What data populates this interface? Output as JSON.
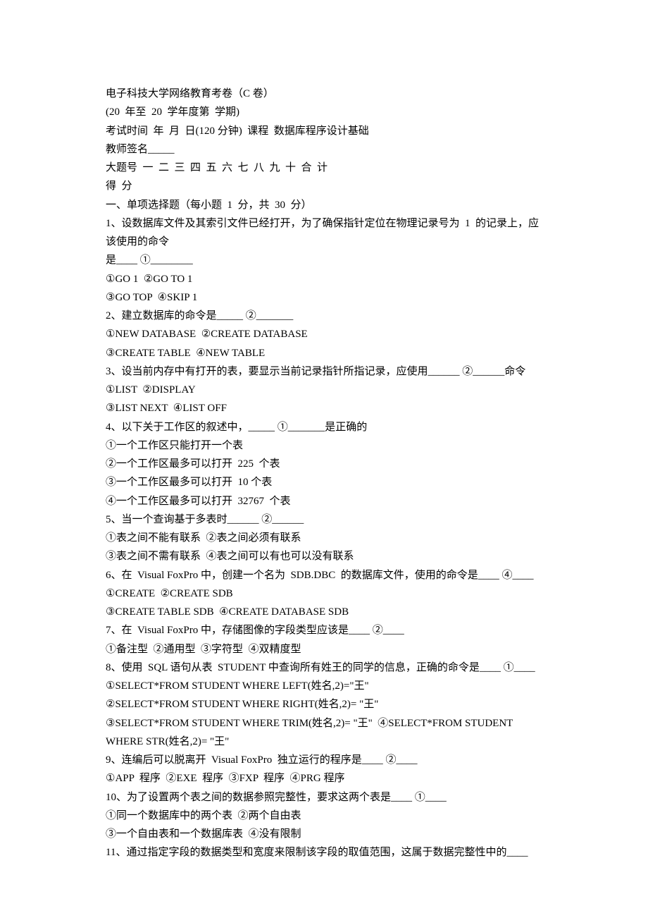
{
  "header": {
    "title": "电子科技大学网络教育考卷（C 卷）",
    "period": "(20  年至  20  学年度第  学期)",
    "examTime": "考试时间  年  月  日(120 分钟)  课程  数据库程序设计基础",
    "teacherSign": "教师签名_____",
    "columns": "大题号  一  二  三  四  五  六  七  八  九  十  合  计",
    "score": "得  分"
  },
  "section1": {
    "title": "一、单项选择题（每小题  1  分，共  30  分）",
    "q1": {
      "stem1": "1、设数据库文件及其索引文件已经打开，为了确保指针定位在物理记录号为  1  的记录上，应该使用的命令",
      "stem2": "是____ ①________",
      "opt1": "①GO 1  ②GO TO 1",
      "opt2": "③GO TOP  ④SKIP 1"
    },
    "q2": {
      "stem": "2、建立数据库的命令是_____ ②_______",
      "opt1": "①NEW DATABASE  ②CREATE DATABASE",
      "opt2": "③CREATE TABLE  ④NEW TABLE"
    },
    "q3": {
      "stem": "3、设当前内存中有打开的表，要显示当前记录指针所指记录，应使用______ ②______命令",
      "opt1": "①LIST  ②DISPLAY",
      "opt2": "③LIST NEXT  ④LIST OFF"
    },
    "q4": {
      "stem": "4、以下关于工作区的叙述中，_____ ①_______是正确的",
      "opt1": "①一个工作区只能打开一个表",
      "opt2": "②一个工作区最多可以打开  225  个表",
      "opt3": "③一个工作区最多可以打开  10 个表",
      "opt4": "④一个工作区最多可以打开  32767  个表"
    },
    "q5": {
      "stem": "5、当一个查询基于多表时______ ②______",
      "opt1": "①表之间不能有联系  ②表之间必须有联系",
      "opt2": "③表之间不需有联系  ④表之间可以有也可以没有联系"
    },
    "q6": {
      "stem": "6、在  Visual FoxPro 中，创建一个名为  SDB.DBC  的数据库文件，使用的命令是____ ④____",
      "opt1": "①CREATE  ②CREATE SDB",
      "opt2": "③CREATE TABLE SDB  ④CREATE DATABASE SDB"
    },
    "q7": {
      "stem": "7、在  Visual FoxPro 中，存储图像的字段类型应该是____ ②____",
      "opt1": "①备注型  ②通用型  ③字符型  ④双精度型"
    },
    "q8": {
      "stem": "8、使用  SQL 语句从表  STUDENT 中查询所有姓王的同学的信息，正确的命令是____ ①____",
      "opt1": "①SELECT*FROM STUDENT WHERE LEFT(姓名,2)=\"王\"",
      "opt2": "②SELECT*FROM STUDENT WHERE RIGHT(姓名,2)= \"王\"",
      "opt3": "③SELECT*FROM STUDENT WHERE TRIM(姓名,2)= \"王\"  ④SELECT*FROM STUDENT WHERE STR(姓名,2)= \"王\""
    },
    "q9": {
      "stem": "9、连编后可以脱离开  Visual FoxPro  独立运行的程序是____ ②____",
      "opt1": "①APP  程序  ②EXE  程序  ③FXP  程序  ④PRG 程序"
    },
    "q10": {
      "stem": "10、为了设置两个表之间的数据参照完整性，要求这两个表是____ ①____",
      "opt1": "①同一个数据库中的两个表  ②两个自由表",
      "opt2": "③一个自由表和一个数据库表  ④没有限制"
    },
    "q11": {
      "stem": "11、通过指定字段的数据类型和宽度来限制该字段的取值范围，这属于数据完整性中的____"
    }
  }
}
